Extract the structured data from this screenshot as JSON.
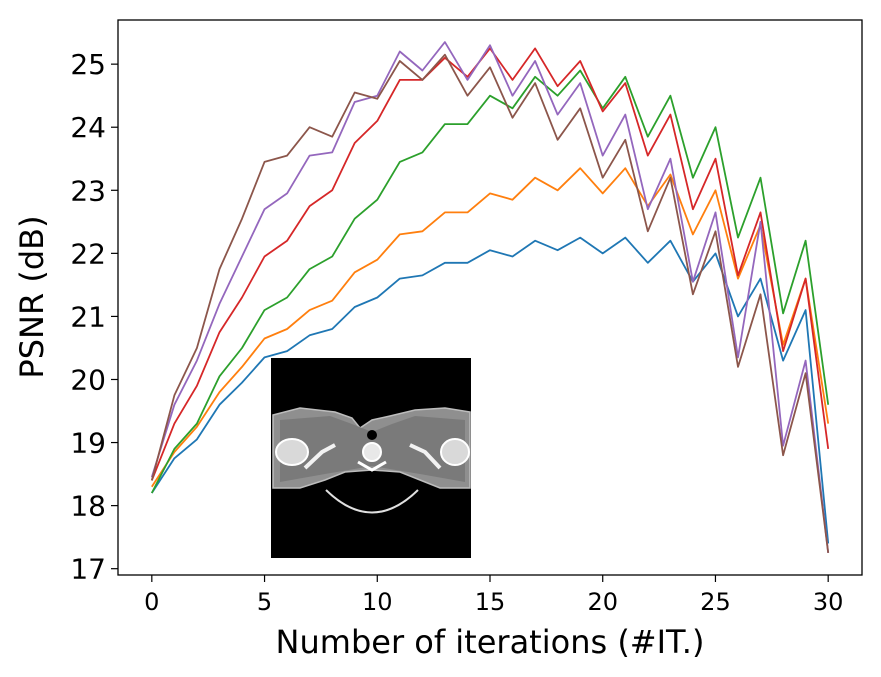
{
  "chart_data": {
    "type": "line",
    "title": "",
    "xlabel": "Number of iterations (#IT.)",
    "ylabel": "PSNR (dB)",
    "xlim": [
      -1.5,
      31.5
    ],
    "ylim": [
      16.9,
      25.7
    ],
    "x_ticks": [
      0,
      5,
      10,
      15,
      20,
      25,
      30
    ],
    "y_ticks": [
      17,
      18,
      19,
      20,
      21,
      22,
      23,
      24,
      25
    ],
    "grid": false,
    "legend": "none",
    "x": [
      0,
      1,
      2,
      3,
      4,
      5,
      6,
      7,
      8,
      9,
      10,
      11,
      12,
      13,
      14,
      15,
      16,
      17,
      18,
      19,
      20,
      21,
      22,
      23,
      24,
      25,
      26,
      27,
      28,
      29,
      30
    ],
    "series": [
      {
        "color": "#1f77b4",
        "values": [
          18.2,
          18.75,
          19.05,
          19.6,
          19.95,
          20.35,
          20.45,
          20.7,
          20.8,
          21.15,
          21.3,
          21.6,
          21.65,
          21.85,
          21.85,
          22.05,
          21.95,
          22.2,
          22.05,
          22.25,
          22.0,
          22.25,
          21.85,
          22.2,
          21.55,
          22.0,
          21.0,
          21.6,
          20.3,
          21.1,
          17.4
        ]
      },
      {
        "color": "#ff7f0e",
        "values": [
          18.3,
          18.85,
          19.25,
          19.8,
          20.2,
          20.65,
          20.8,
          21.1,
          21.25,
          21.7,
          21.9,
          22.3,
          22.35,
          22.65,
          22.65,
          22.95,
          22.85,
          23.2,
          23.0,
          23.35,
          22.95,
          23.35,
          22.75,
          23.25,
          22.3,
          23.0,
          21.6,
          22.45,
          20.55,
          21.6,
          19.3
        ]
      },
      {
        "color": "#2ca02c",
        "values": [
          18.2,
          18.9,
          19.3,
          20.05,
          20.5,
          21.1,
          21.3,
          21.75,
          21.95,
          22.55,
          22.85,
          23.45,
          23.6,
          24.05,
          24.05,
          24.5,
          24.3,
          24.8,
          24.5,
          24.9,
          24.3,
          24.8,
          23.85,
          24.5,
          23.2,
          24.0,
          22.25,
          23.2,
          21.05,
          22.2,
          19.6
        ]
      },
      {
        "color": "#d62728",
        "values": [
          18.4,
          19.3,
          19.9,
          20.75,
          21.3,
          21.95,
          22.2,
          22.75,
          23.0,
          23.75,
          24.1,
          24.75,
          24.75,
          25.1,
          24.8,
          25.25,
          24.75,
          25.25,
          24.65,
          25.05,
          24.25,
          24.7,
          23.55,
          24.2,
          22.7,
          23.5,
          21.65,
          22.65,
          20.45,
          21.6,
          18.9
        ]
      },
      {
        "color": "#9467bd",
        "values": [
          18.45,
          19.6,
          20.3,
          21.2,
          21.95,
          22.7,
          22.95,
          23.55,
          23.6,
          24.4,
          24.5,
          25.2,
          24.9,
          25.35,
          24.75,
          25.3,
          24.5,
          25.05,
          24.2,
          24.7,
          23.55,
          24.2,
          22.7,
          23.5,
          21.55,
          22.65,
          20.35,
          22.5,
          18.95,
          20.3,
          17.25
        ]
      },
      {
        "color": "#8c564b",
        "values": [
          18.4,
          19.75,
          20.5,
          21.75,
          22.55,
          23.45,
          23.55,
          24.0,
          23.85,
          24.55,
          24.45,
          25.05,
          24.75,
          25.15,
          24.5,
          24.95,
          24.15,
          24.7,
          23.8,
          24.3,
          23.2,
          23.8,
          22.35,
          23.2,
          21.35,
          22.35,
          20.2,
          21.35,
          18.8,
          20.1,
          17.25
        ]
      }
    ]
  }
}
